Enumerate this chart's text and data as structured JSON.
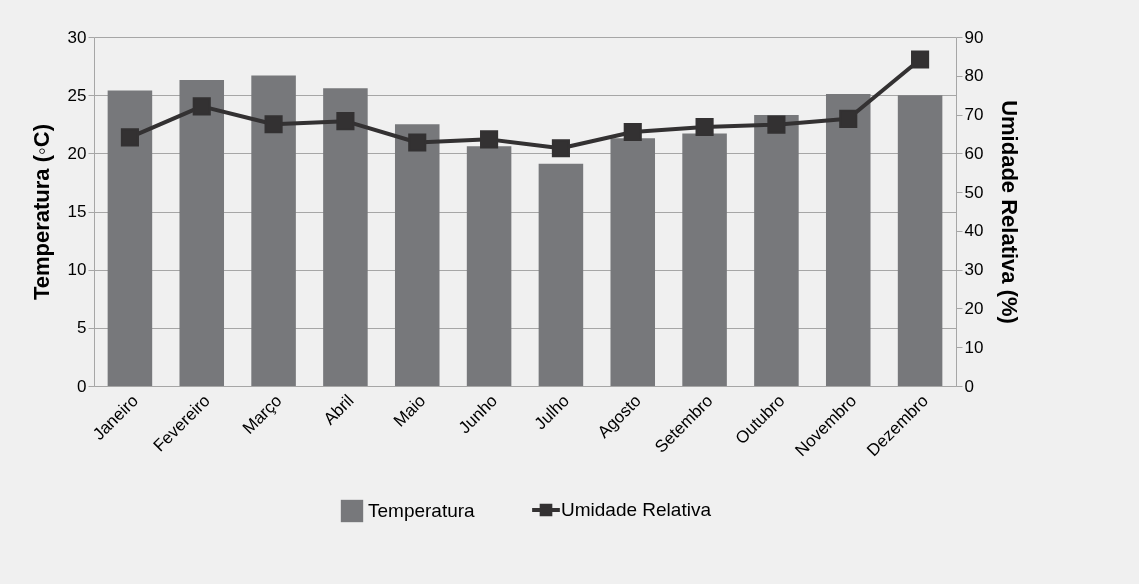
{
  "chart_data": {
    "type": "bar",
    "xlabel": null,
    "ylabel": "Temperatura  (◦C)",
    "y2label": "Umidade Relativa (%)",
    "categories": [
      "Janeiro",
      "Fevereiro",
      "Março",
      "Abril",
      "Maio",
      "Junho",
      "Julho",
      "Agosto",
      "Setembro",
      "Outubro",
      "Novembro",
      "Dezembro"
    ],
    "series": [
      {
        "name": "Temperatura",
        "color": "#77787b",
        "values": [
          25.4,
          26.3,
          26.7,
          25.6,
          22.5,
          20.6,
          19.1,
          21.3,
          21.7,
          23.3,
          25.1,
          25.0
        ]
      },
      {
        "name": "Umidade Relativa",
        "type": "line",
        "axis": "y2",
        "color": "#333132",
        "marker": "square",
        "values": [
          64.1,
          72.1,
          67.5,
          68.3,
          62.8,
          63.6,
          61.3,
          65.5,
          66.8,
          67.4,
          68.9,
          84.2
        ]
      }
    ],
    "ylim": [
      0,
      30
    ],
    "yticks": [
      0,
      5,
      10,
      15,
      20,
      25,
      30
    ],
    "y2lim": [
      0,
      90
    ],
    "y2ticks": [
      0,
      10,
      20,
      30,
      40,
      50,
      60,
      70,
      80,
      90
    ],
    "grid": "y",
    "legend": "bottom"
  }
}
